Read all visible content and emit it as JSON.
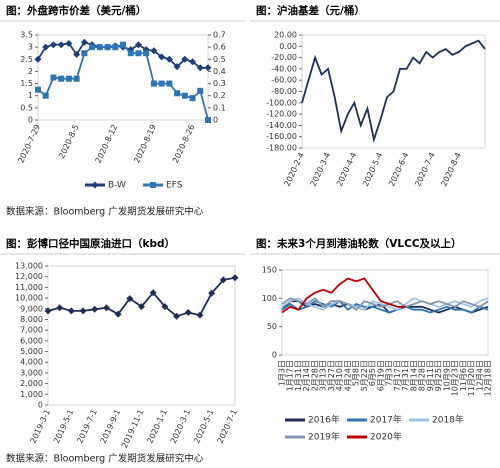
{
  "chart_data": [
    {
      "type": "line",
      "title": "图：外盘跨市价差（美元/桶）",
      "categories": [
        "2020-7-29",
        null,
        null,
        null,
        null,
        "2020-8-5",
        null,
        null,
        null,
        null,
        "2020-8-12",
        null,
        null,
        null,
        null,
        "2020-8-19",
        null,
        null,
        null,
        null,
        "2020-8-26",
        null,
        null
      ],
      "series": [
        {
          "name": "B-W",
          "color": "#1f3d7a",
          "marker": "diamond",
          "values": [
            2.5,
            3.0,
            3.1,
            3.1,
            3.15,
            2.7,
            3.2,
            3.1,
            3.0,
            3.0,
            3.05,
            3.0,
            2.9,
            3.1,
            2.9,
            2.85,
            2.6,
            2.5,
            2.2,
            2.5,
            2.4,
            2.15,
            2.15
          ]
        },
        {
          "name": "EFS",
          "color": "#2e75b6",
          "marker": "square",
          "axis": "y2",
          "values": [
            0.25,
            0.2,
            0.35,
            0.34,
            0.34,
            0.34,
            0.55,
            0.6,
            0.6,
            0.6,
            0.6,
            0.62,
            0.55,
            0.55,
            0.55,
            0.3,
            0.3,
            0.3,
            0.22,
            0.2,
            0.18,
            0.24,
            0.0
          ]
        }
      ],
      "ylim": [
        0,
        3.5
      ],
      "yticks": [
        0,
        0.5,
        1,
        1.5,
        2,
        2.5,
        3,
        3.5
      ],
      "y2lim": [
        0,
        0.7
      ],
      "y2ticks": [
        0,
        0.1,
        0.2,
        0.3,
        0.4,
        0.5,
        0.6,
        0.7
      ],
      "legend": "bottom"
    },
    {
      "type": "line",
      "title": "图：沪油基差（元/桶）",
      "categories": [
        "2020-2-4",
        null,
        null,
        null,
        "2020-3-4",
        null,
        null,
        null,
        "2020-4-4",
        null,
        null,
        null,
        "2020-5-4",
        null,
        null,
        null,
        "2020-6-4",
        null,
        null,
        null,
        "2020-7-4",
        null,
        null,
        null,
        "2020-8-4",
        null,
        null,
        null,
        null
      ],
      "series": [
        {
          "color": "#1f2f5a",
          "values": [
            -100,
            -60,
            -20,
            -50,
            -40,
            -90,
            -150,
            -120,
            -100,
            -140,
            -110,
            -165,
            -130,
            -90,
            -80,
            -40,
            -40,
            -20,
            -30,
            -10,
            -20,
            -10,
            -5,
            -15,
            -10,
            0,
            5,
            10,
            -5
          ]
        }
      ],
      "ylim": [
        -180,
        20
      ],
      "yticks": [
        {
          "value": -180,
          "label": "-180.00"
        },
        {
          "value": -160,
          "label": "-160.00"
        },
        {
          "value": -140,
          "label": "-140.00"
        },
        {
          "value": -120,
          "label": "-120.00"
        },
        {
          "value": -100,
          "label": "-100.00"
        },
        {
          "value": -80,
          "label": "-80.00"
        },
        {
          "value": -60,
          "label": "-60.00"
        },
        {
          "value": -40,
          "label": "-40.00"
        },
        {
          "value": -20,
          "label": "-20.00"
        },
        {
          "value": 0,
          "label": "0.00"
        },
        {
          "value": 20,
          "label": "20.00"
        }
      ]
    },
    {
      "type": "line",
      "title": "图：彭博口径中国原油进口（kbd）",
      "categories": [
        "2019-3-1",
        null,
        "2019-5-1",
        null,
        "2019-7-1",
        null,
        "2019-9-1",
        null,
        "2019-11-1",
        null,
        "2020-1-1",
        null,
        "2020-3-1",
        null,
        "2020-5-1",
        null,
        "2020-7-1"
      ],
      "series": [
        {
          "color": "#1f2f5a",
          "marker": "diamond",
          "values": [
            8800,
            9100,
            8800,
            8800,
            8950,
            9100,
            8500,
            9950,
            9200,
            10500,
            9200,
            8300,
            8650,
            8400,
            10450,
            11700,
            11900
          ]
        }
      ],
      "ylim": [
        0,
        13000
      ],
      "yticks": [
        0,
        {
          "value": 1000,
          "label": "1,000"
        },
        {
          "value": 2000,
          "label": "2,000"
        },
        {
          "value": 3000,
          "label": "3,000"
        },
        {
          "value": 4000,
          "label": "4,000"
        },
        {
          "value": 5000,
          "label": "5,000"
        },
        {
          "value": 6000,
          "label": "6,000"
        },
        {
          "value": 7000,
          "label": "7,000"
        },
        {
          "value": 8000,
          "label": "8,000"
        },
        {
          "value": 9000,
          "label": "9,000"
        },
        {
          "value": 10000,
          "label": "10,000"
        },
        {
          "value": 11000,
          "label": "11,000"
        },
        {
          "value": 12000,
          "label": "12,000"
        },
        {
          "value": 13000,
          "label": "13,000"
        }
      ]
    },
    {
      "type": "line",
      "title": "图：未来3个月到港油轮数（VLCC及以上）",
      "categories": [
        "1月3日",
        "1月17日",
        "1月31日",
        "2月14日",
        "2月28日",
        "3月13日",
        "3月27日",
        "4月10日",
        "4月24日",
        "5月8日",
        "5月22日",
        "6月5日",
        "6月19日",
        "7月3日",
        "7月17日",
        "7月31日",
        "8月14日",
        "8月28日",
        "9月11日",
        "9月25日",
        "10月9日",
        "10月23日",
        "11月6日",
        "11月20日",
        "12月4日",
        "12月18日"
      ],
      "series": [
        {
          "name": "2016年",
          "color": "#1f2f5a",
          "values": [
            80,
            95,
            95,
            85,
            90,
            85,
            90,
            85,
            90,
            85,
            80,
            85,
            90,
            75,
            80,
            85,
            85,
            85,
            80,
            75,
            80,
            85,
            80,
            75,
            80,
            85
          ]
        },
        {
          "name": "2017年",
          "color": "#2e75b6",
          "values": [
            80,
            90,
            80,
            85,
            95,
            90,
            85,
            95,
            80,
            90,
            85,
            85,
            80,
            75,
            80,
            85,
            80,
            80,
            75,
            80,
            85,
            80,
            80,
            75,
            85,
            80
          ]
        },
        {
          "name": "2018年",
          "color": "#9dc3e6",
          "values": [
            85,
            95,
            100,
            90,
            85,
            80,
            90,
            95,
            90,
            85,
            80,
            95,
            90,
            85,
            80,
            90,
            100,
            95,
            90,
            85,
            90,
            95,
            90,
            85,
            95,
            100
          ]
        },
        {
          "name": "2019年",
          "color": "#8497b0",
          "values": [
            90,
            100,
            95,
            90,
            100,
            85,
            95,
            95,
            90,
            80,
            95,
            90,
            85,
            90,
            95,
            85,
            90,
            95,
            90,
            95,
            90,
            85,
            95,
            90,
            85,
            95
          ]
        },
        {
          "name": "2020年",
          "color": "#c00000",
          "values": [
            75,
            85,
            80,
            100,
            110,
            115,
            110,
            125,
            135,
            130,
            135,
            115,
            95,
            90,
            85,
            85,
            null,
            null,
            null,
            null,
            null,
            null,
            null,
            null,
            null,
            null
          ]
        }
      ],
      "ylim": [
        0,
        150
      ],
      "yticks": [
        0,
        50,
        100,
        150
      ],
      "legend": "bottom"
    }
  ],
  "notes": [
    "数据来源：Bloomberg 广发期货发展研究中心",
    "数据来源：Bloomberg 广发期货发展研究中心"
  ]
}
